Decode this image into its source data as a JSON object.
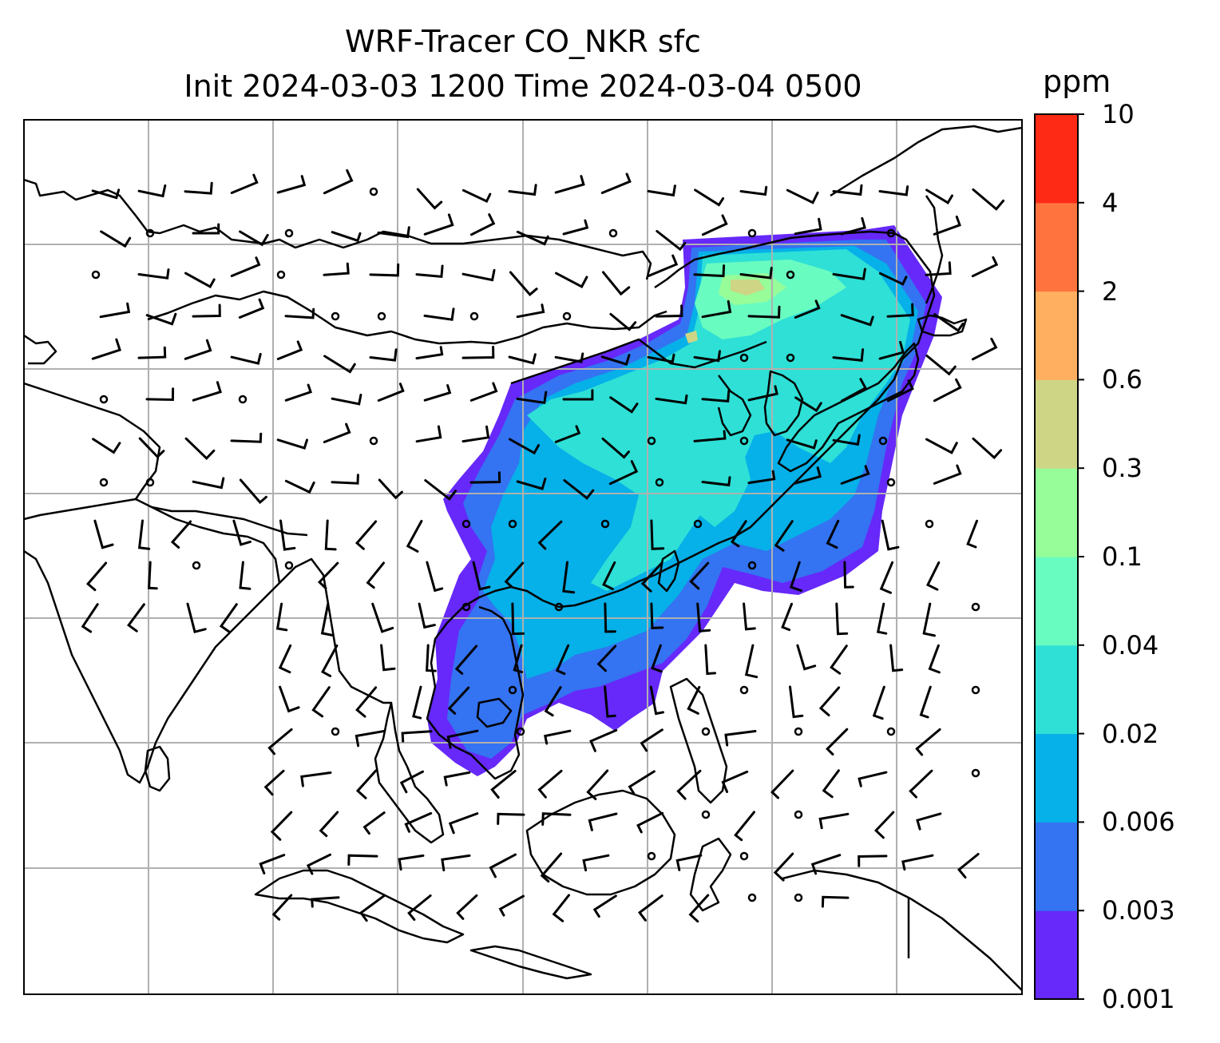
{
  "title": {
    "line1": "WRF-Tracer CO_NKR sfc",
    "line2": "Init 2024-03-03 1200 Time 2024-03-04 0500"
  },
  "colorbar": {
    "units": "ppm",
    "tick_labels": [
      "0.001",
      "0.003",
      "0.006",
      "0.02",
      "0.04",
      "0.1",
      "0.3",
      "0.6",
      "2",
      "4",
      "10"
    ],
    "colors": [
      "#6629fa",
      "#3473f1",
      "#06b0e8",
      "#2ee0d6",
      "#69fcc0",
      "#96fd99",
      "#ced584",
      "#ffaf5f",
      "#ff733e",
      "#ff2a16"
    ]
  },
  "map": {
    "gridline_color": "#b0b0b0",
    "coastline_color": "#000000",
    "wind_barbs": "shown",
    "gridlines": "on"
  }
}
